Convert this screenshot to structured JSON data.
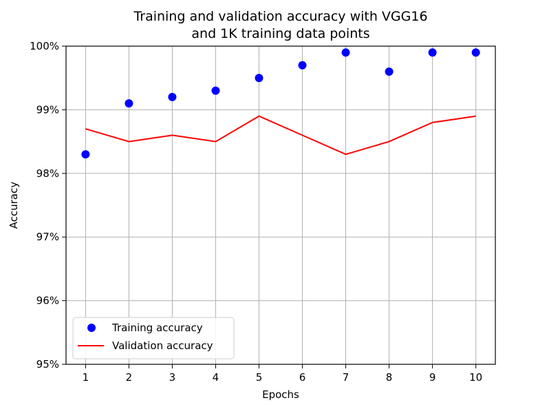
{
  "chart_data": {
    "type": "line",
    "title_lines": [
      "Training and validation accuracy with VGG16",
      "and 1K training data points"
    ],
    "xlabel": "Epochs",
    "ylabel": "Accuracy",
    "x": [
      1,
      2,
      3,
      4,
      5,
      6,
      7,
      8,
      9,
      10
    ],
    "xticks": [
      "1",
      "2",
      "3",
      "4",
      "5",
      "6",
      "7",
      "8",
      "9",
      "10"
    ],
    "yticks": [
      {
        "value": 95,
        "label": "95%"
      },
      {
        "value": 96,
        "label": "96%"
      },
      {
        "value": 97,
        "label": "97%"
      },
      {
        "value": 98,
        "label": "98%"
      },
      {
        "value": 99,
        "label": "99%"
      },
      {
        "value": 100,
        "label": "100%"
      }
    ],
    "xlim": [
      0.55,
      10.45
    ],
    "ylim": [
      95,
      100
    ],
    "grid": true,
    "legend_position": "lower-left",
    "series": [
      {
        "name": "Training accuracy",
        "style": "markers",
        "color": "#0000ff",
        "values": [
          98.3,
          99.1,
          99.2,
          99.3,
          99.5,
          99.7,
          99.9,
          99.6,
          99.9,
          99.9
        ]
      },
      {
        "name": "Validation accuracy",
        "style": "line",
        "color": "#ff0000",
        "values": [
          98.7,
          98.5,
          98.6,
          98.5,
          98.9,
          98.6,
          98.3,
          98.5,
          98.8,
          98.9
        ]
      }
    ]
  }
}
